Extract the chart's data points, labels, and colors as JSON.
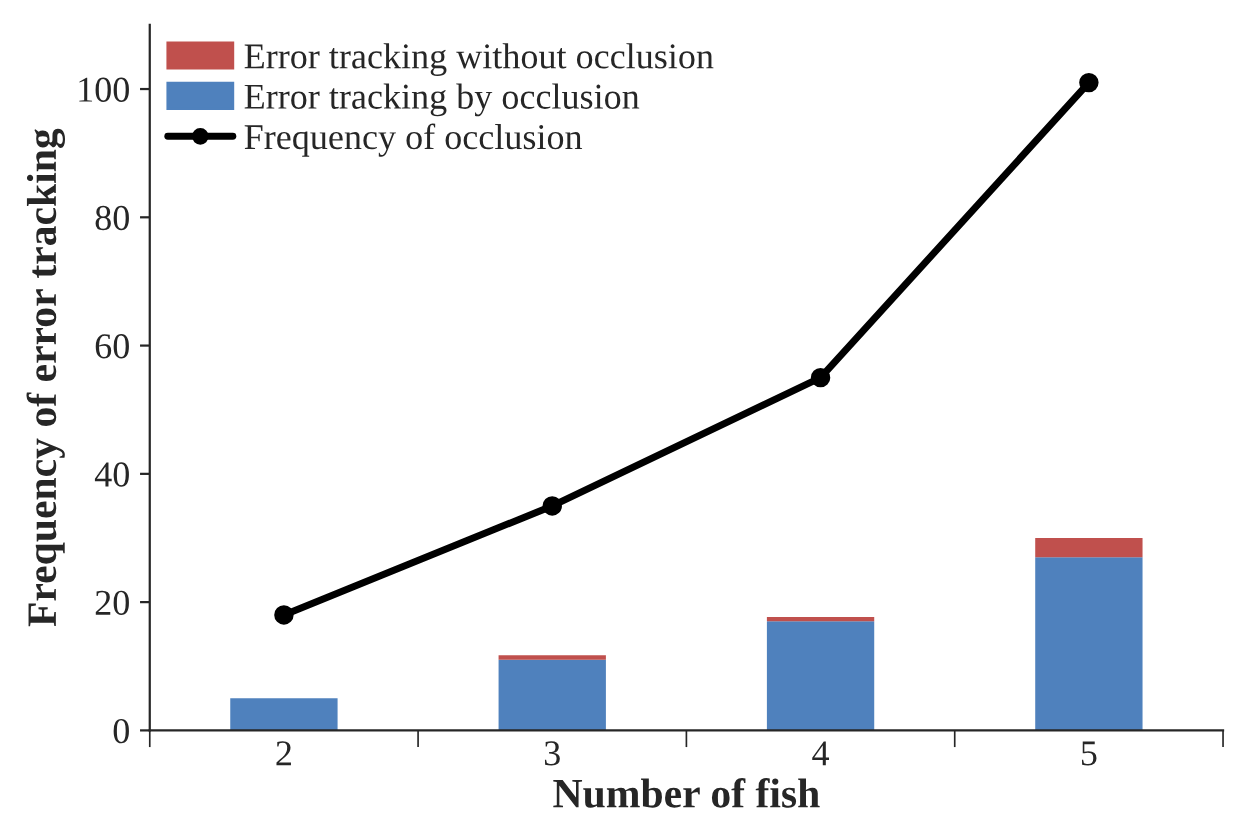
{
  "chart_data": {
    "type": "bar",
    "stacked": true,
    "xlabel": "Number of fish",
    "ylabel": "Frequency of error tracking",
    "categories": [
      "2",
      "3",
      "4",
      "5"
    ],
    "series": [
      {
        "name": "Error tracking by occlusion",
        "color": "#4f81bd",
        "values": [
          5,
          11,
          17,
          27
        ]
      },
      {
        "name": "Error tracking without occlusion",
        "color": "#c0504d",
        "values": [
          null,
          0.7,
          0.7,
          3
        ]
      },
      {
        "name": "Frequency of occlusion",
        "type": "line",
        "color": "#000000",
        "marker": "circle",
        "values": [
          18,
          35,
          55,
          101
        ]
      }
    ],
    "ylim": [
      0,
      110
    ],
    "yticks": [
      0,
      20,
      40,
      60,
      80,
      100
    ],
    "grid": false,
    "legend": "top left"
  }
}
